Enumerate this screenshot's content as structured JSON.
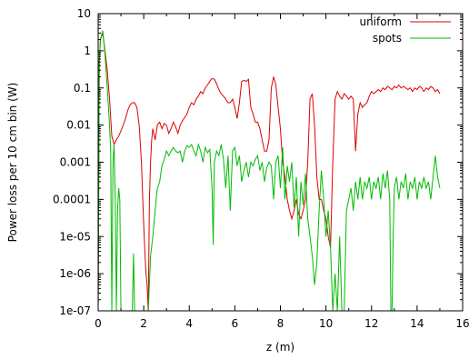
{
  "chart_data": {
    "type": "line",
    "title": "",
    "xlabel": "z (m)",
    "ylabel": "Power loss per 10 cm bin (W)",
    "xlim": [
      0,
      16
    ],
    "ylim": [
      1e-07,
      10
    ],
    "yscale": "log",
    "grid": false,
    "legend_position": "top-right",
    "x_ticks": [
      0,
      2,
      4,
      6,
      8,
      10,
      12,
      14,
      16
    ],
    "x_tick_labels": [
      "0",
      "2",
      "4",
      "6",
      "8",
      "10",
      "12",
      "14",
      "16"
    ],
    "y_ticks": [
      1e-07,
      1e-06,
      1e-05,
      0.0001,
      0.001,
      0.01,
      0.1,
      1,
      10
    ],
    "y_tick_labels": [
      "1e-07",
      "1e-06",
      "1e-05",
      "0.0001",
      "0.001",
      "0.01",
      "0.1",
      "1",
      "10"
    ],
    "series": [
      {
        "name": "uniform",
        "color": "#dd0000",
        "points": [
          [
            0.0,
            1e-07
          ],
          [
            0.05,
            0.5
          ],
          [
            0.1,
            2
          ],
          [
            0.2,
            3
          ],
          [
            0.3,
            1
          ],
          [
            0.4,
            0.3
          ],
          [
            0.5,
            0.05
          ],
          [
            0.6,
            0.005
          ],
          [
            0.7,
            0.003
          ],
          [
            0.8,
            0.004
          ],
          [
            0.9,
            0.005
          ],
          [
            1.0,
            0.007
          ],
          [
            1.1,
            0.01
          ],
          [
            1.2,
            0.015
          ],
          [
            1.3,
            0.025
          ],
          [
            1.4,
            0.035
          ],
          [
            1.5,
            0.04
          ],
          [
            1.6,
            0.04
          ],
          [
            1.7,
            0.03
          ],
          [
            1.8,
            0.01
          ],
          [
            1.9,
            0.001
          ],
          [
            2.0,
            2e-05
          ],
          [
            2.05,
            4e-06
          ],
          [
            2.1,
            1e-06
          ],
          [
            2.15,
            5e-07
          ],
          [
            2.2,
            1e-07
          ],
          [
            2.25,
            0.0001
          ],
          [
            2.3,
            0.001
          ],
          [
            2.35,
            0.004
          ],
          [
            2.4,
            0.008
          ],
          [
            2.5,
            0.004
          ],
          [
            2.6,
            0.01
          ],
          [
            2.7,
            0.012
          ],
          [
            2.8,
            0.008
          ],
          [
            2.9,
            0.011
          ],
          [
            3.0,
            0.01
          ],
          [
            3.1,
            0.006
          ],
          [
            3.2,
            0.008
          ],
          [
            3.3,
            0.012
          ],
          [
            3.4,
            0.009
          ],
          [
            3.5,
            0.006
          ],
          [
            3.6,
            0.01
          ],
          [
            3.7,
            0.013
          ],
          [
            3.8,
            0.016
          ],
          [
            3.9,
            0.02
          ],
          [
            4.0,
            0.03
          ],
          [
            4.1,
            0.04
          ],
          [
            4.2,
            0.035
          ],
          [
            4.3,
            0.05
          ],
          [
            4.4,
            0.06
          ],
          [
            4.5,
            0.08
          ],
          [
            4.6,
            0.07
          ],
          [
            4.7,
            0.1
          ],
          [
            4.8,
            0.12
          ],
          [
            4.9,
            0.15
          ],
          [
            5.0,
            0.18
          ],
          [
            5.1,
            0.17
          ],
          [
            5.2,
            0.13
          ],
          [
            5.3,
            0.09
          ],
          [
            5.4,
            0.07
          ],
          [
            5.5,
            0.06
          ],
          [
            5.6,
            0.05
          ],
          [
            5.7,
            0.04
          ],
          [
            5.8,
            0.04
          ],
          [
            5.9,
            0.05
          ],
          [
            6.0,
            0.03
          ],
          [
            6.1,
            0.015
          ],
          [
            6.2,
            0.04
          ],
          [
            6.3,
            0.15
          ],
          [
            6.4,
            0.16
          ],
          [
            6.5,
            0.15
          ],
          [
            6.6,
            0.17
          ],
          [
            6.7,
            0.03
          ],
          [
            6.8,
            0.02
          ],
          [
            6.9,
            0.012
          ],
          [
            7.0,
            0.012
          ],
          [
            7.1,
            0.008
          ],
          [
            7.2,
            0.004
          ],
          [
            7.3,
            0.002
          ],
          [
            7.4,
            0.002
          ],
          [
            7.5,
            0.004
          ],
          [
            7.6,
            0.1
          ],
          [
            7.7,
            0.2
          ],
          [
            7.8,
            0.12
          ],
          [
            7.9,
            0.03
          ],
          [
            8.0,
            0.008
          ],
          [
            8.1,
            0.001
          ],
          [
            8.2,
            0.0004
          ],
          [
            8.3,
            0.0001
          ],
          [
            8.4,
            5e-05
          ],
          [
            8.5,
            3e-05
          ],
          [
            8.6,
            5e-05
          ],
          [
            8.7,
            0.0001
          ],
          [
            8.8,
            4e-05
          ],
          [
            8.9,
            3e-05
          ],
          [
            9.0,
            5e-05
          ],
          [
            9.1,
            0.0001
          ],
          [
            9.2,
            0.001
          ],
          [
            9.3,
            0.05
          ],
          [
            9.4,
            0.07
          ],
          [
            9.5,
            0.01
          ],
          [
            9.6,
            0.0004
          ],
          [
            9.7,
            0.0001
          ],
          [
            9.8,
            0.0001
          ],
          [
            9.9,
            5e-05
          ],
          [
            10.0,
            3e-05
          ],
          [
            10.1,
            1e-05
          ],
          [
            10.2,
            5e-06
          ],
          [
            10.3,
            0.001
          ],
          [
            10.4,
            0.05
          ],
          [
            10.5,
            0.08
          ],
          [
            10.6,
            0.06
          ],
          [
            10.7,
            0.05
          ],
          [
            10.8,
            0.07
          ],
          [
            10.9,
            0.06
          ],
          [
            11.0,
            0.05
          ],
          [
            11.1,
            0.06
          ],
          [
            11.2,
            0.05
          ],
          [
            11.3,
            0.002
          ],
          [
            11.4,
            0.02
          ],
          [
            11.5,
            0.04
          ],
          [
            11.6,
            0.03
          ],
          [
            11.7,
            0.035
          ],
          [
            11.8,
            0.04
          ],
          [
            11.9,
            0.06
          ],
          [
            12.0,
            0.08
          ],
          [
            12.1,
            0.07
          ],
          [
            12.2,
            0.08
          ],
          [
            12.3,
            0.09
          ],
          [
            12.4,
            0.08
          ],
          [
            12.5,
            0.1
          ],
          [
            12.6,
            0.09
          ],
          [
            12.7,
            0.11
          ],
          [
            12.8,
            0.1
          ],
          [
            12.9,
            0.09
          ],
          [
            13.0,
            0.11
          ],
          [
            13.1,
            0.1
          ],
          [
            13.2,
            0.12
          ],
          [
            13.3,
            0.1
          ],
          [
            13.4,
            0.11
          ],
          [
            13.5,
            0.1
          ],
          [
            13.6,
            0.09
          ],
          [
            13.7,
            0.1
          ],
          [
            13.8,
            0.08
          ],
          [
            13.9,
            0.1
          ],
          [
            14.0,
            0.09
          ],
          [
            14.1,
            0.11
          ],
          [
            14.2,
            0.1
          ],
          [
            14.3,
            0.08
          ],
          [
            14.4,
            0.1
          ],
          [
            14.5,
            0.09
          ],
          [
            14.6,
            0.11
          ],
          [
            14.7,
            0.1
          ],
          [
            14.8,
            0.08
          ],
          [
            14.9,
            0.09
          ],
          [
            15.0,
            0.07
          ]
        ]
      },
      {
        "name": "spots",
        "color": "#00bb00",
        "points": [
          [
            0.0,
            1e-07
          ],
          [
            0.05,
            0.5
          ],
          [
            0.1,
            2
          ],
          [
            0.2,
            3.5
          ],
          [
            0.3,
            0.8
          ],
          [
            0.4,
            0.1
          ],
          [
            0.5,
            0.01
          ],
          [
            0.55,
            0.002
          ],
          [
            0.6,
            1e-07
          ],
          [
            0.65,
            0.001
          ],
          [
            0.7,
            0.003
          ],
          [
            0.75,
            0.0001
          ],
          [
            0.8,
            1e-07
          ],
          [
            0.85,
            5e-05
          ],
          [
            0.9,
            0.0002
          ],
          [
            0.95,
            0.0001
          ],
          [
            1.0,
            1e-07
          ],
          [
            1.05,
            1e-07
          ],
          [
            1.5,
            1e-07
          ],
          [
            1.55,
            3.5e-06
          ],
          [
            1.6,
            1e-07
          ],
          [
            2.2,
            1e-07
          ],
          [
            2.3,
            3e-06
          ],
          [
            2.4,
            1e-05
          ],
          [
            2.5,
            5e-05
          ],
          [
            2.6,
            0.0002
          ],
          [
            2.7,
            0.0003
          ],
          [
            2.8,
            0.0008
          ],
          [
            2.9,
            0.0012
          ],
          [
            3.0,
            0.002
          ],
          [
            3.1,
            0.0015
          ],
          [
            3.2,
            0.002
          ],
          [
            3.3,
            0.0025
          ],
          [
            3.4,
            0.002
          ],
          [
            3.5,
            0.0018
          ],
          [
            3.6,
            0.002
          ],
          [
            3.7,
            0.001
          ],
          [
            3.8,
            0.002
          ],
          [
            3.9,
            0.0028
          ],
          [
            4.0,
            0.0025
          ],
          [
            4.1,
            0.003
          ],
          [
            4.2,
            0.002
          ],
          [
            4.3,
            0.0015
          ],
          [
            4.4,
            0.003
          ],
          [
            4.5,
            0.002
          ],
          [
            4.6,
            0.001
          ],
          [
            4.7,
            0.0025
          ],
          [
            4.8,
            0.0018
          ],
          [
            4.9,
            0.0022
          ],
          [
            5.0,
            0.0002
          ],
          [
            5.05,
            6e-06
          ],
          [
            5.1,
            0.001
          ],
          [
            5.2,
            0.002
          ],
          [
            5.3,
            0.0015
          ],
          [
            5.4,
            0.003
          ],
          [
            5.5,
            0.0012
          ],
          [
            5.6,
            0.0002
          ],
          [
            5.7,
            0.0015
          ],
          [
            5.8,
            5e-05
          ],
          [
            5.9,
            0.002
          ],
          [
            6.0,
            0.0025
          ],
          [
            6.1,
            0.0008
          ],
          [
            6.2,
            0.0015
          ],
          [
            6.3,
            0.0003
          ],
          [
            6.4,
            0.0006
          ],
          [
            6.5,
            0.001
          ],
          [
            6.6,
            0.0004
          ],
          [
            6.7,
            0.001
          ],
          [
            6.8,
            0.0008
          ],
          [
            6.9,
            0.0012
          ],
          [
            7.0,
            0.0015
          ],
          [
            7.1,
            0.0006
          ],
          [
            7.2,
            0.001
          ],
          [
            7.3,
            0.0003
          ],
          [
            7.4,
            0.0007
          ],
          [
            7.5,
            0.001
          ],
          [
            7.6,
            0.0008
          ],
          [
            7.7,
            0.0001
          ],
          [
            7.8,
            0.001
          ],
          [
            7.9,
            0.0015
          ],
          [
            8.0,
            0.0002
          ],
          [
            8.1,
            0.0025
          ],
          [
            8.2,
            0.0001
          ],
          [
            8.3,
            0.0008
          ],
          [
            8.4,
            0.0003
          ],
          [
            8.5,
            0.001
          ],
          [
            8.6,
            6e-05
          ],
          [
            8.7,
            0.0004
          ],
          [
            8.8,
            1e-05
          ],
          [
            8.9,
            0.0003
          ],
          [
            9.0,
            7e-05
          ],
          [
            9.1,
            0.0005
          ],
          [
            9.2,
            3e-05
          ],
          [
            9.3,
            1e-05
          ],
          [
            9.4,
            3e-06
          ],
          [
            9.5,
            5e-07
          ],
          [
            9.6,
            2e-06
          ],
          [
            9.7,
            5e-05
          ],
          [
            9.8,
            0.0006
          ],
          [
            9.9,
            0.0001
          ],
          [
            10.0,
            1e-05
          ],
          [
            10.1,
            5e-05
          ],
          [
            10.2,
            5e-06
          ],
          [
            10.3,
            1e-07
          ],
          [
            10.4,
            1e-06
          ],
          [
            10.5,
            1e-07
          ],
          [
            10.6,
            1e-05
          ],
          [
            10.7,
            1e-07
          ],
          [
            10.8,
            1e-07
          ],
          [
            10.9,
            5e-05
          ],
          [
            11.0,
            0.0001
          ],
          [
            11.1,
            0.0002
          ],
          [
            11.2,
            5e-05
          ],
          [
            11.3,
            0.0003
          ],
          [
            11.4,
            0.0001
          ],
          [
            11.5,
            0.0004
          ],
          [
            11.6,
            0.0001
          ],
          [
            11.7,
            0.0003
          ],
          [
            11.8,
            0.0002
          ],
          [
            11.9,
            0.0004
          ],
          [
            12.0,
            0.0001
          ],
          [
            12.1,
            0.0003
          ],
          [
            12.2,
            0.0002
          ],
          [
            12.3,
            0.0004
          ],
          [
            12.4,
            0.0001
          ],
          [
            12.5,
            0.0005
          ],
          [
            12.6,
            0.0002
          ],
          [
            12.7,
            0.0006
          ],
          [
            12.8,
            0.0001
          ],
          [
            12.85,
            1e-07
          ],
          [
            12.9,
            1e-07
          ],
          [
            12.95,
            1e-05
          ],
          [
            13.0,
            0.0002
          ],
          [
            13.1,
            0.0004
          ],
          [
            13.2,
            0.0001
          ],
          [
            13.3,
            0.0003
          ],
          [
            13.4,
            0.0002
          ],
          [
            13.5,
            0.0005
          ],
          [
            13.6,
            0.0001
          ],
          [
            13.7,
            0.0003
          ],
          [
            13.8,
            0.0002
          ],
          [
            13.9,
            0.0004
          ],
          [
            14.0,
            0.0001
          ],
          [
            14.1,
            0.0003
          ],
          [
            14.2,
            0.0002
          ],
          [
            14.3,
            0.0004
          ],
          [
            14.4,
            0.0002
          ],
          [
            14.5,
            0.0003
          ],
          [
            14.6,
            0.0001
          ],
          [
            14.7,
            0.0004
          ],
          [
            14.8,
            0.0015
          ],
          [
            14.9,
            0.0004
          ],
          [
            15.0,
            0.0002
          ]
        ]
      }
    ]
  }
}
